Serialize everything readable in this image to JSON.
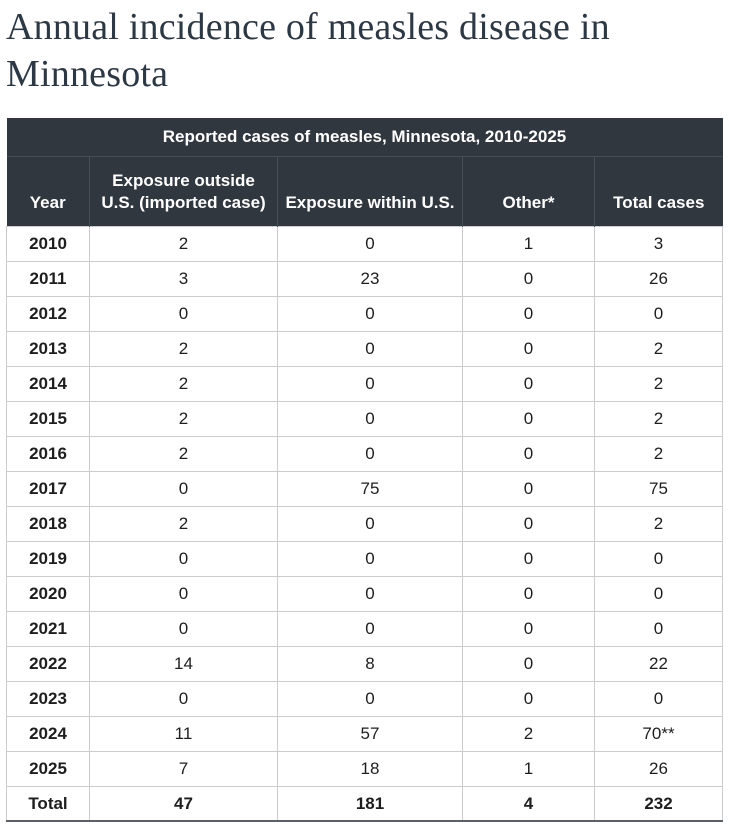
{
  "page_title": "Annual incidence of measles disease in Minnesota",
  "colors": {
    "header_bg": "#30373e",
    "header_divider": "#484f57",
    "body_border": "#cccccc",
    "bottom_border": "#596067",
    "title_color": "#2d3845"
  },
  "chart_data": {
    "type": "table",
    "caption": "Reported cases of measles, Minnesota, 2010-2025",
    "columns": [
      {
        "id": "year",
        "label": "Year"
      },
      {
        "id": "exposure-outside-us",
        "label": "Exposure outside\nU.S. (imported case)"
      },
      {
        "id": "exposure-within-us",
        "label": "Exposure within U.S."
      },
      {
        "id": "other",
        "label": "Other*"
      },
      {
        "id": "total-cases",
        "label": "Total cases"
      }
    ],
    "rows": [
      {
        "year": "2010",
        "values": [
          "2",
          "0",
          "1",
          "3"
        ]
      },
      {
        "year": "2011",
        "values": [
          "3",
          "23",
          "0",
          "26"
        ]
      },
      {
        "year": "2012",
        "values": [
          "0",
          "0",
          "0",
          "0"
        ]
      },
      {
        "year": "2013",
        "values": [
          "2",
          "0",
          "0",
          "2"
        ]
      },
      {
        "year": "2014",
        "values": [
          "2",
          "0",
          "0",
          "2"
        ]
      },
      {
        "year": "2015",
        "values": [
          "2",
          "0",
          "0",
          "2"
        ]
      },
      {
        "year": "2016",
        "values": [
          "2",
          "0",
          "0",
          "2"
        ]
      },
      {
        "year": "2017",
        "values": [
          "0",
          "75",
          "0",
          "75"
        ]
      },
      {
        "year": "2018",
        "values": [
          "2",
          "0",
          "0",
          "2"
        ]
      },
      {
        "year": "2019",
        "values": [
          "0",
          "0",
          "0",
          "0"
        ]
      },
      {
        "year": "2020",
        "values": [
          "0",
          "0",
          "0",
          "0"
        ]
      },
      {
        "year": "2021",
        "values": [
          "0",
          "0",
          "0",
          "0"
        ]
      },
      {
        "year": "2022",
        "values": [
          "14",
          "8",
          "0",
          "22"
        ]
      },
      {
        "year": "2023",
        "values": [
          "0",
          "0",
          "0",
          "0"
        ]
      },
      {
        "year": "2024",
        "values": [
          "11",
          "57",
          "2",
          "70**"
        ]
      },
      {
        "year": "2025",
        "values": [
          "7",
          "18",
          "1",
          "26"
        ]
      },
      {
        "year": "Total",
        "values": [
          "47",
          "181",
          "4",
          "232"
        ],
        "total": true
      }
    ]
  }
}
